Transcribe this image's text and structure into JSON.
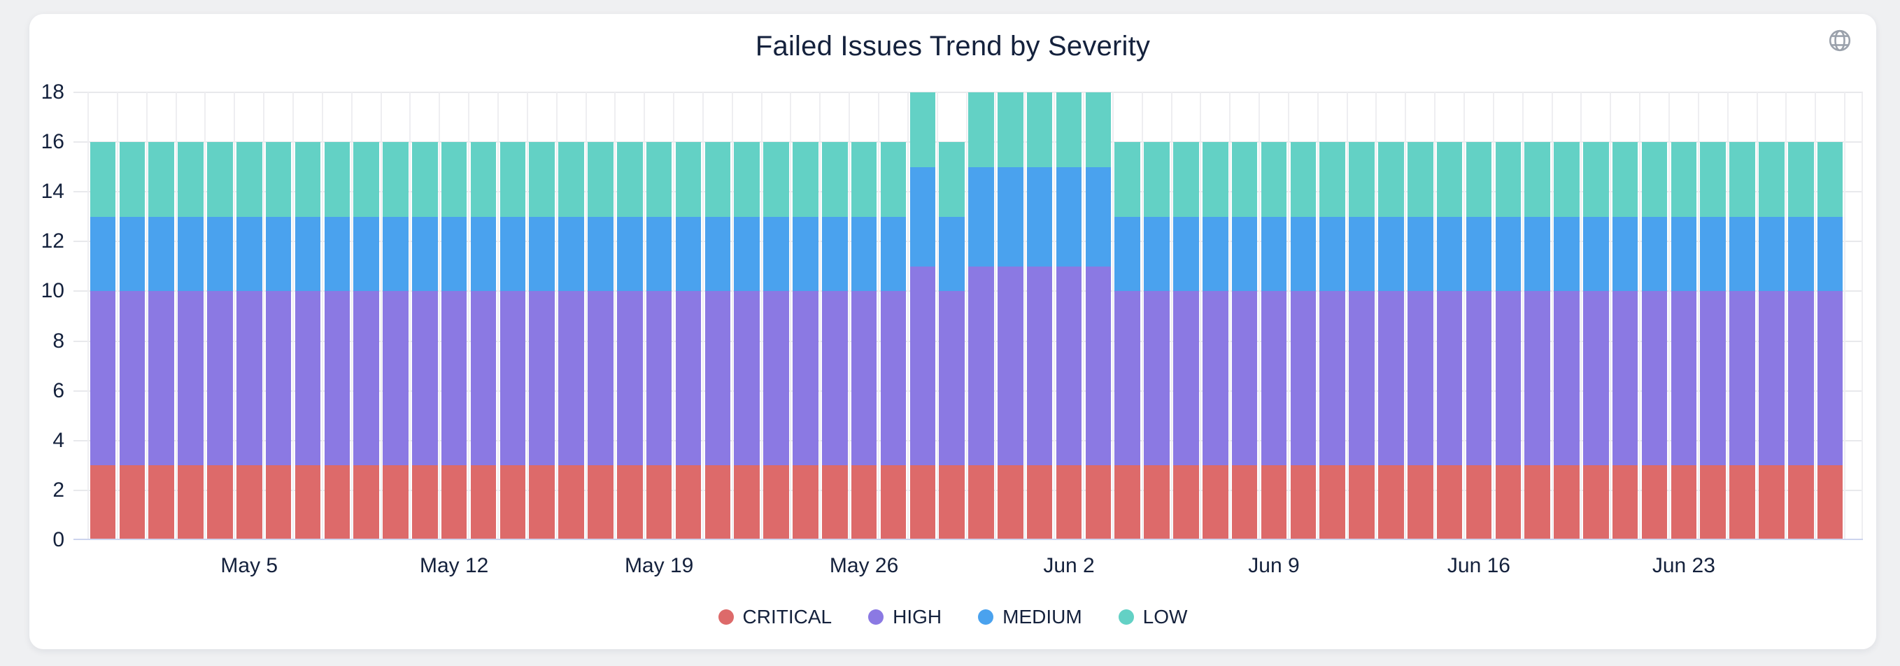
{
  "page": {
    "background": "#eff0f2",
    "card_background": "#ffffff"
  },
  "header": {
    "icon": "globe-icon",
    "icon_color": "#9aa1ab"
  },
  "chart_data": {
    "type": "bar",
    "stacked": true,
    "title": "Failed Issues Trend by Severity",
    "xlabel": "",
    "ylabel": "",
    "ylim": [
      0,
      18
    ],
    "yticks": [
      0,
      2,
      4,
      6,
      8,
      10,
      12,
      14,
      16,
      18
    ],
    "grid": true,
    "legend_position": "bottom",
    "categories": [
      "Apr 30",
      "May 1",
      "May 2",
      "May 3",
      "May 4",
      "May 5",
      "May 6",
      "May 7",
      "May 8",
      "May 9",
      "May 10",
      "May 11",
      "May 12",
      "May 13",
      "May 14",
      "May 15",
      "May 16",
      "May 17",
      "May 18",
      "May 19",
      "May 20",
      "May 21",
      "May 22",
      "May 23",
      "May 24",
      "May 25",
      "May 26",
      "May 27",
      "May 28",
      "May 29",
      "May 30",
      "May 31",
      "Jun 1",
      "Jun 2",
      "Jun 3",
      "Jun 4",
      "Jun 5",
      "Jun 6",
      "Jun 7",
      "Jun 8",
      "Jun 9",
      "Jun 10",
      "Jun 11",
      "Jun 12",
      "Jun 13",
      "Jun 14",
      "Jun 15",
      "Jun 16",
      "Jun 17",
      "Jun 18",
      "Jun 19",
      "Jun 20",
      "Jun 21",
      "Jun 22",
      "Jun 23",
      "Jun 24",
      "Jun 25",
      "Jun 26",
      "Jun 27",
      "Jun 28"
    ],
    "xticks": {
      "labels": [
        "May 5",
        "May 12",
        "May 19",
        "May 26",
        "Jun 2",
        "Jun 9",
        "Jun 16",
        "Jun 23"
      ],
      "indices": [
        5,
        12,
        19,
        26,
        33,
        40,
        47,
        54
      ]
    },
    "series": [
      {
        "name": "CRITICAL",
        "color": "#dd6a6a",
        "values": [
          3,
          3,
          3,
          3,
          3,
          3,
          3,
          3,
          3,
          3,
          3,
          3,
          3,
          3,
          3,
          3,
          3,
          3,
          3,
          3,
          3,
          3,
          3,
          3,
          3,
          3,
          3,
          3,
          3,
          3,
          3,
          3,
          3,
          3,
          3,
          3,
          3,
          3,
          3,
          3,
          3,
          3,
          3,
          3,
          3,
          3,
          3,
          3,
          3,
          3,
          3,
          3,
          3,
          3,
          3,
          3,
          3,
          3,
          3,
          3
        ]
      },
      {
        "name": "HIGH",
        "color": "#8b79e3",
        "values": [
          7,
          7,
          7,
          7,
          7,
          7,
          7,
          7,
          7,
          7,
          7,
          7,
          7,
          7,
          7,
          7,
          7,
          7,
          7,
          7,
          7,
          7,
          7,
          7,
          7,
          7,
          7,
          7,
          8,
          7,
          8,
          8,
          8,
          8,
          8,
          7,
          7,
          7,
          7,
          7,
          7,
          7,
          7,
          7,
          7,
          7,
          7,
          7,
          7,
          7,
          7,
          7,
          7,
          7,
          7,
          7,
          7,
          7,
          7,
          7
        ]
      },
      {
        "name": "MEDIUM",
        "color": "#4aa2ee",
        "values": [
          3,
          3,
          3,
          3,
          3,
          3,
          3,
          3,
          3,
          3,
          3,
          3,
          3,
          3,
          3,
          3,
          3,
          3,
          3,
          3,
          3,
          3,
          3,
          3,
          3,
          3,
          3,
          3,
          4,
          3,
          4,
          4,
          4,
          4,
          4,
          3,
          3,
          3,
          3,
          3,
          3,
          3,
          3,
          3,
          3,
          3,
          3,
          3,
          3,
          3,
          3,
          3,
          3,
          3,
          3,
          3,
          3,
          3,
          3,
          3
        ]
      },
      {
        "name": "LOW",
        "color": "#63d1c5",
        "values": [
          3,
          3,
          3,
          3,
          3,
          3,
          3,
          3,
          3,
          3,
          3,
          3,
          3,
          3,
          3,
          3,
          3,
          3,
          3,
          3,
          3,
          3,
          3,
          3,
          3,
          3,
          3,
          3,
          3,
          3,
          3,
          3,
          3,
          3,
          3,
          3,
          3,
          3,
          3,
          3,
          3,
          3,
          3,
          3,
          3,
          3,
          3,
          3,
          3,
          3,
          3,
          3,
          3,
          3,
          3,
          3,
          3,
          3,
          3,
          3
        ]
      }
    ]
  }
}
